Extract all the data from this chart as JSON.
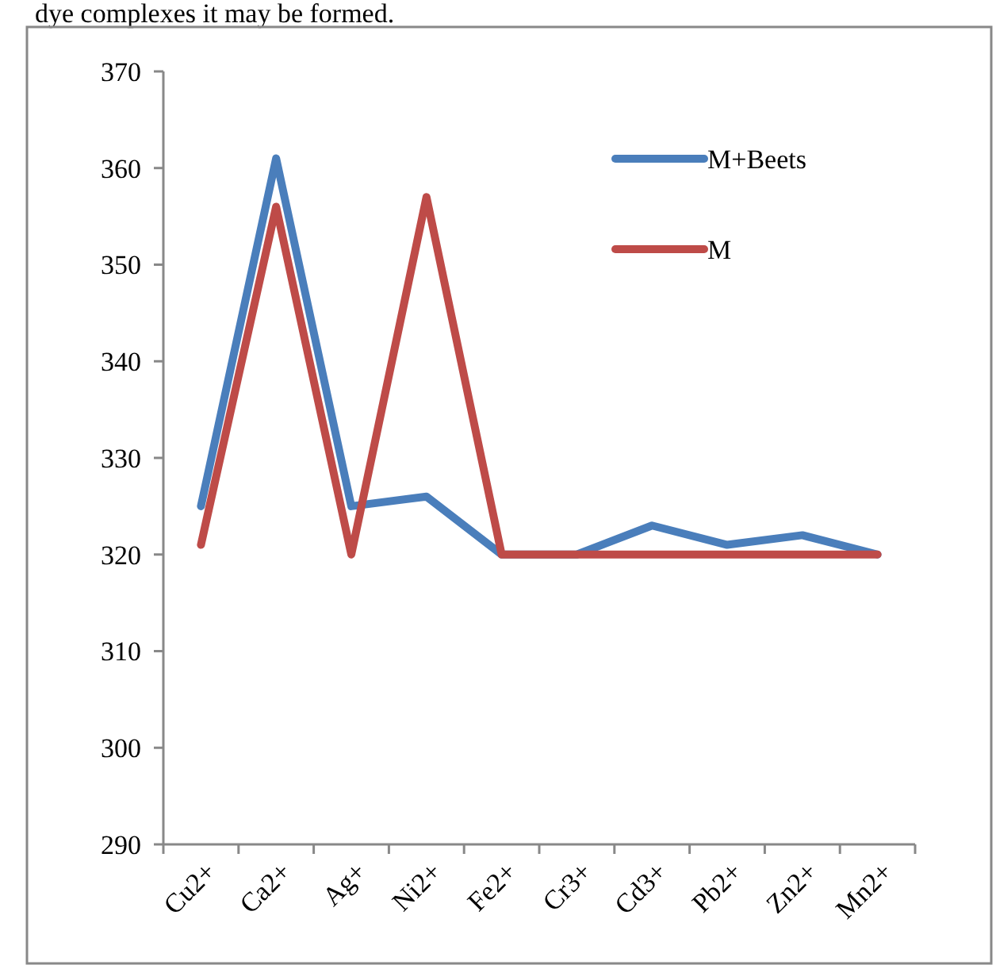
{
  "chart_data": {
    "type": "line",
    "annotations": [
      "dye complexes it may be formed."
    ],
    "categories": [
      "Cu2+",
      "Ca2+",
      "Ag+",
      "Ni2+",
      "Fe2+",
      "Cr3+",
      "Cd3+",
      "Pb2+",
      "Zn2+",
      "Mn2+"
    ],
    "series": [
      {
        "name": "M+Beets",
        "color": "#4a7ebb",
        "values": [
          325,
          361,
          325,
          326,
          320,
          320,
          323,
          321,
          322,
          320
        ]
      },
      {
        "name": "M",
        "color": "#be4b48",
        "values": [
          321,
          356,
          320,
          357,
          320,
          320,
          320,
          320,
          320,
          320
        ]
      }
    ],
    "ylim": [
      290,
      370
    ],
    "yticks": [
      290,
      300,
      310,
      320,
      330,
      340,
      350,
      360,
      370
    ],
    "grid": false,
    "legend": "top right",
    "marker": "none",
    "line_style": "solid"
  }
}
